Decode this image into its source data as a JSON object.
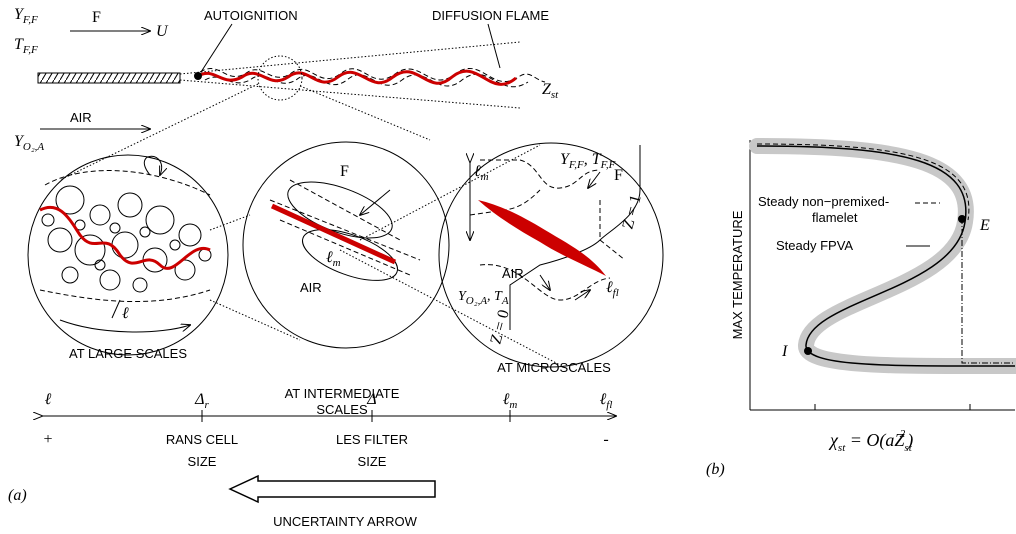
{
  "panel_a": {
    "label": "(a)",
    "fuel_inlet": {
      "y_symbol": "Y",
      "y_sub": "F,F",
      "t_symbol": "T",
      "t_sub": "F,F",
      "stream": "F",
      "velocity": "U"
    },
    "autoignition": "AUTOIGNITION",
    "diffusion_flame": "DIFFUSION FLAME",
    "stoichiometric": {
      "symbol": "Z",
      "sub": "st"
    },
    "air_inlet": {
      "stream": "AIR",
      "y_symbol": "Y",
      "y_sub": "O₂,A"
    },
    "large_scales": {
      "length": "ℓ",
      "label": "AT LARGE SCALES"
    },
    "intermediate_scales": {
      "fuel": "F",
      "length_symbol": "ℓ",
      "length_sub": "m",
      "oxidizer": "AIR",
      "label": [
        "AT INTERMEDIATE",
        "SCALES"
      ]
    },
    "microscales": {
      "fuel_y_symbol": "Y",
      "fuel_y_sub": "F,F",
      "fuel_t_symbol": "T",
      "fuel_t_sub": "F,F",
      "fuel": "F",
      "length_symbol": "ℓ",
      "length_sub": "m",
      "z_one": "Z = 1",
      "z_zero": "Z = 0",
      "oxidizer": "AIR",
      "air_y_symbol": "Y",
      "air_y_sub": "O₂,A",
      "air_t_symbol": "T",
      "air_t_sub": "A",
      "flame_symbol": "ℓ",
      "flame_sub": "fl",
      "label": "AT MICROSCALES"
    },
    "scale_axis": {
      "ticks": [
        {
          "symbol": "ℓ"
        },
        {
          "symbol": "Δ",
          "sub": "r"
        },
        {
          "symbol": "Δ"
        },
        {
          "symbol": "ℓ",
          "sub": "m"
        },
        {
          "symbol": "ℓ",
          "sub": "fl"
        }
      ],
      "plus": "+",
      "minus": "-",
      "rans": [
        "RANS CELL",
        "SIZE"
      ],
      "les": [
        "LES FILTER",
        "SIZE"
      ]
    },
    "uncertainty_arrow": "UNCERTAINTY ARROW"
  },
  "panel_b": {
    "label": "(b)",
    "y_axis": "MAX TEMPERATURE",
    "x_axis": {
      "lhs_symbol": "χ",
      "lhs_sub": "st",
      "rhs": " = O(aZ",
      "rhs_sub": "st",
      "rhs_sup": "2",
      "close": ")"
    },
    "legend": {
      "flamelet": [
        "Steady non−premixed-",
        "flamelet"
      ],
      "fpva": "Steady FPVA"
    },
    "point_e": "E",
    "point_i": "I"
  }
}
